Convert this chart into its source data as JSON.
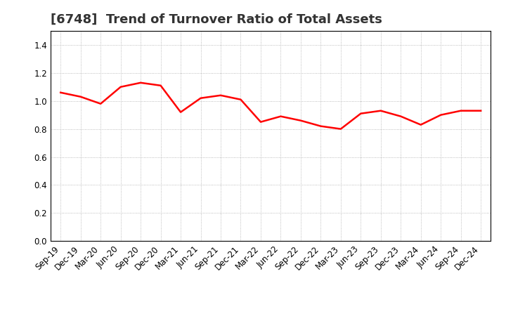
{
  "title": "[6748]  Trend of Turnover Ratio of Total Assets",
  "x_labels": [
    "Sep-19",
    "Dec-19",
    "Mar-20",
    "Jun-20",
    "Sep-20",
    "Dec-20",
    "Mar-21",
    "Jun-21",
    "Sep-21",
    "Dec-21",
    "Mar-22",
    "Jun-22",
    "Sep-22",
    "Dec-22",
    "Mar-23",
    "Jun-23",
    "Sep-23",
    "Dec-23",
    "Mar-24",
    "Jun-24",
    "Sep-24",
    "Dec-24"
  ],
  "y_values": [
    1.06,
    1.03,
    0.98,
    1.1,
    1.13,
    1.11,
    0.92,
    1.02,
    1.04,
    1.01,
    0.85,
    0.89,
    0.86,
    0.82,
    0.8,
    0.91,
    0.93,
    0.89,
    0.83,
    0.9,
    0.93,
    0.93
  ],
  "line_color": "#FF0000",
  "line_width": 1.8,
  "ylim": [
    0.0,
    1.5
  ],
  "yticks": [
    0.0,
    0.2,
    0.4,
    0.6,
    0.8,
    1.0,
    1.2,
    1.4
  ],
  "grid_color": "#aaaaaa",
  "grid_style": "dotted",
  "background_color": "#ffffff",
  "title_fontsize": 13,
  "tick_fontsize": 8.5,
  "title_color": "#333333"
}
